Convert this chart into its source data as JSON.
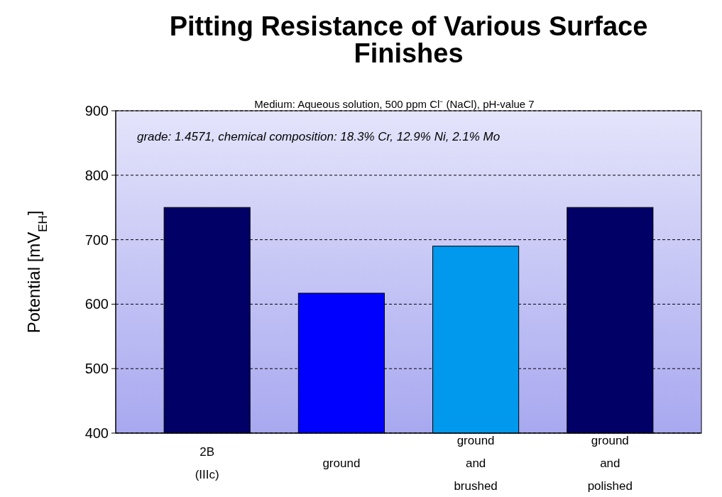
{
  "chart_data": {
    "type": "bar",
    "title": "Pitting Resistance of Various Surface Finishes",
    "ylabel": "Potential [mV$_{EH}$]",
    "annotations": [
      "Medium: Aqueous solution, 500 ppm Cl⁻ (NaCl), pH-value 7",
      "grade: 1.4571, chemical composition: 18.3% Cr, 12.9% Ni, 2.1% Mo"
    ],
    "categories": [
      "2B (IIIc)",
      "ground",
      "ground and brushed",
      "ground and polished"
    ],
    "values": [
      750,
      617,
      690,
      750
    ],
    "colors": [
      "#000066",
      "#0000ff",
      "#0099ee",
      "#000066"
    ],
    "ylim": [
      400,
      900
    ],
    "yticks": [
      400,
      500,
      600,
      700,
      800,
      900
    ],
    "grid": "y"
  }
}
